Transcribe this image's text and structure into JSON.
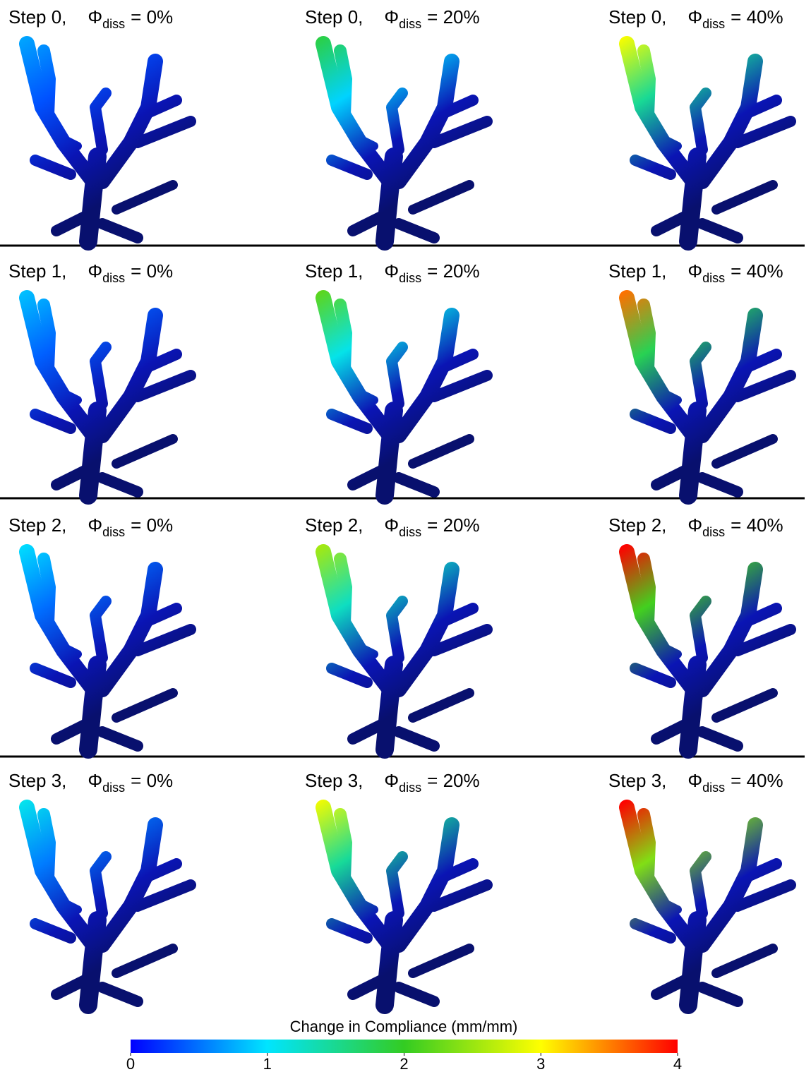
{
  "panels": [
    {
      "step": "Step 0,",
      "symbol": "Φ",
      "subscript": "diss",
      "value": "= 0%"
    },
    {
      "step": "Step 0,",
      "symbol": "Φ",
      "subscript": "diss",
      "value": "= 20%"
    },
    {
      "step": "Step 0,",
      "symbol": "Φ",
      "subscript": "diss",
      "value": "= 40%"
    },
    {
      "step": "Step 1,",
      "symbol": "Φ",
      "subscript": "diss",
      "value": "= 0%"
    },
    {
      "step": "Step 1,",
      "symbol": "Φ",
      "subscript": "diss",
      "value": "= 20%"
    },
    {
      "step": "Step 1,",
      "symbol": "Φ",
      "subscript": "diss",
      "value": "= 40%"
    },
    {
      "step": "Step 2,",
      "symbol": "Φ",
      "subscript": "diss",
      "value": "= 0%"
    },
    {
      "step": "Step 2,",
      "symbol": "Φ",
      "subscript": "diss",
      "value": "= 20%"
    },
    {
      "step": "Step 2,",
      "symbol": "Φ",
      "subscript": "diss",
      "value": "= 40%"
    },
    {
      "step": "Step 3,",
      "symbol": "Φ",
      "subscript": "diss",
      "value": "= 0%"
    },
    {
      "step": "Step 3,",
      "symbol": "Φ",
      "subscript": "diss",
      "value": "= 20%"
    },
    {
      "step": "Step 3,",
      "symbol": "Φ",
      "subscript": "diss",
      "value": "= 40%"
    }
  ],
  "colorbar": {
    "title": "Change in Compliance (mm/mm)",
    "ticks": [
      0,
      1,
      2,
      3,
      4
    ]
  }
}
